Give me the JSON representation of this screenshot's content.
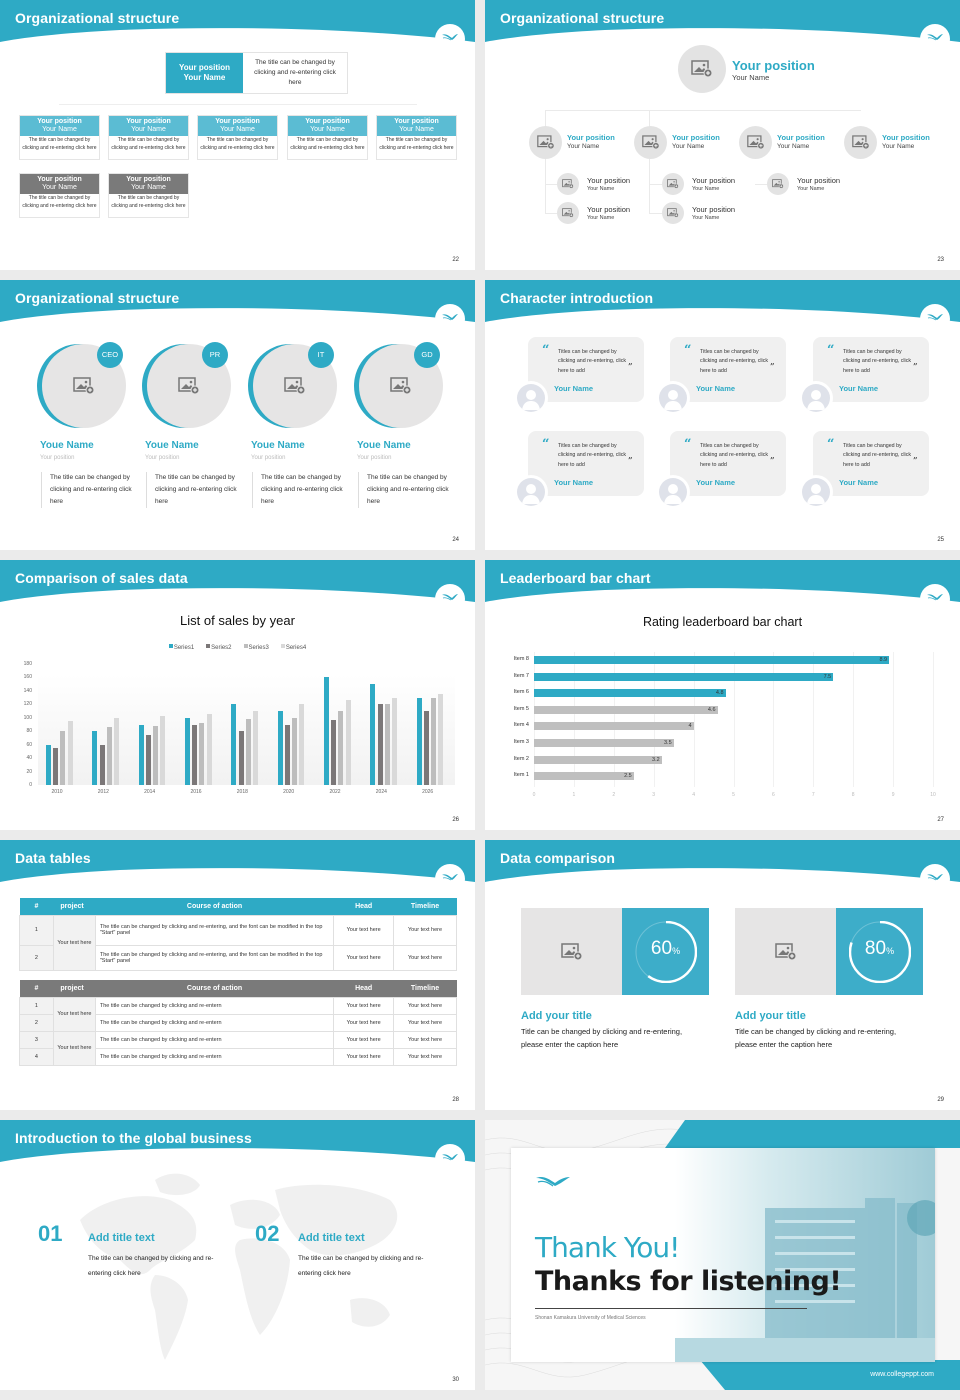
{
  "theme": {
    "accent": "#2eaac5",
    "grey_bar": "#7a7a7a",
    "light_grey": "#e6e5e5"
  },
  "slides": {
    "s22": {
      "title": "Organizational structure",
      "page": "22",
      "top": {
        "position": "Your position",
        "name": "Your Name",
        "desc": "The title can be changed by clicking and re-entering click here"
      },
      "cards": [
        {
          "position": "Your position",
          "name": "Your Name",
          "desc": "The title can be changed by clicking and re-entering click here"
        },
        {
          "position": "Your position",
          "name": "Your Name",
          "desc": "The title can be changed by clicking and re-entering click here"
        },
        {
          "position": "Your position",
          "name": "Your Name",
          "desc": "The title can be changed by clicking and re-entering click here"
        },
        {
          "position": "Your position",
          "name": "Your Name",
          "desc": "The title can be changed by clicking and re-entering click here"
        },
        {
          "position": "Your position",
          "name": "Your Name",
          "desc": "The title can be changed by clicking and re-entering click here"
        },
        {
          "position": "Your position",
          "name": "Your Name",
          "desc": "The title can be changed by clicking and re-entering click here"
        },
        {
          "position": "Your position",
          "name": "Your Name",
          "desc": "The title can be changed by clicking and re-entering click here"
        }
      ]
    },
    "s23": {
      "title": "Organizational structure",
      "page": "23",
      "top": {
        "position": "Your position",
        "name": "Your Name"
      },
      "level2": [
        {
          "position": "Your position",
          "name": "Your Name"
        },
        {
          "position": "Your position",
          "name": "Your Name"
        },
        {
          "position": "Your position",
          "name": "Your Name"
        },
        {
          "position": "Your position",
          "name": "Your Name"
        }
      ],
      "level3": [
        {
          "position": "Your position",
          "name": "Your Name"
        },
        {
          "position": "Your position",
          "name": "Your Name"
        },
        {
          "position": "Your position",
          "name": "Your Name"
        },
        {
          "position": "Your position",
          "name": "Your Name"
        },
        {
          "position": "Your position",
          "name": "Your Name"
        }
      ]
    },
    "s24": {
      "title": "Organizational structure",
      "page": "24",
      "members": [
        {
          "badge": "CEO",
          "name": "Youe Name",
          "position": "Your position",
          "desc": "The title can be changed by clicking and re-entering click here"
        },
        {
          "badge": "PR",
          "name": "Youe Name",
          "position": "Your position",
          "desc": "The title can be changed by clicking and re-entering click here"
        },
        {
          "badge": "IT",
          "name": "Youe Name",
          "position": "Your position",
          "desc": "The title can be changed by clicking and re-entering click here"
        },
        {
          "badge": "GD",
          "name": "Youe Name",
          "position": "Your position",
          "desc": "The title can be changed by clicking and re-entering click here"
        }
      ]
    },
    "s25": {
      "title": "Character introduction",
      "page": "25",
      "quote_open": "“",
      "quote_close": "”",
      "cards": [
        {
          "text": "Titles can be changed by clicking and re-entering, click here to add",
          "name": "Your Name"
        },
        {
          "text": "Titles can be changed by clicking and re-entering, click here to add",
          "name": "Your Name"
        },
        {
          "text": "Titles can be changed by clicking and re-entering, click here to add",
          "name": "Your Name"
        },
        {
          "text": "Titles can be changed by clicking and re-entering, click here to add",
          "name": "Your Name"
        },
        {
          "text": "Titles can be changed by clicking and re-entering, click here to add",
          "name": "Your Name"
        },
        {
          "text": "Titles can be changed by clicking and re-entering, click here to add",
          "name": "Your Name"
        }
      ]
    },
    "s26": {
      "title": "Comparison of sales data",
      "page": "26"
    },
    "s27": {
      "title": "Leaderboard bar chart",
      "page": "27"
    },
    "s28": {
      "title": "Data tables",
      "page": "28",
      "table1": {
        "headers": [
          "#",
          "project",
          "Course of action",
          "Head",
          "Timeline"
        ],
        "project": "Your text here",
        "rows": [
          {
            "num": "1",
            "action": "The title can be changed by clicking and re-entering, and the font can be modified in the top \"Start\" panel",
            "head": "Your text here",
            "timeline": "Your text here"
          },
          {
            "num": "2",
            "action": "The title can be changed by clicking and re-entering, and the font can be modified in the top \"Start\" panel",
            "head": "Your text here",
            "timeline": "Your text here"
          }
        ]
      },
      "table2": {
        "headers": [
          "#",
          "project",
          "Course of action",
          "Head",
          "Timeline"
        ],
        "projects": [
          "Your text here",
          "Your text here"
        ],
        "rows": [
          {
            "num": "1",
            "action": "The title can be changed by clicking and re-entern",
            "head": "Your text here",
            "timeline": "Your text here"
          },
          {
            "num": "2",
            "action": "The title can be changed by clicking and re-entern",
            "head": "Your text here",
            "timeline": "Your text here"
          },
          {
            "num": "3",
            "action": "The title can be changed by clicking and re-entern",
            "head": "Your text here",
            "timeline": "Your text here"
          },
          {
            "num": "4",
            "action": "The title can be changed by clicking and re-entern",
            "head": "Your text here",
            "timeline": "Your text here"
          }
        ]
      }
    },
    "s29": {
      "title": "Data comparison",
      "page": "29",
      "items": [
        {
          "value": "60",
          "unit": "%",
          "percent": 60,
          "title": "Add your title",
          "text": "Title can be changed by clicking and re-entering, please enter the caption here"
        },
        {
          "value": "80",
          "unit": "%",
          "percent": 80,
          "title": "Add your title",
          "text": "Title can be changed by clicking and re-entering, please enter the caption here"
        }
      ]
    },
    "s30": {
      "title": "Introduction to the global business",
      "page": "30",
      "items": [
        {
          "num": "01",
          "title": "Add title text",
          "text": "The title can be changed by clicking and re-entering click here"
        },
        {
          "num": "02",
          "title": "Add title text",
          "text": "The title can be changed by clicking and re-entering click here"
        }
      ]
    },
    "s31": {
      "thank": "Thank You!",
      "listening": "Thanks for listening!",
      "subtitle": "Shonan Kamakura University of Medical Sciences",
      "url": "www.collegeppt.com"
    }
  },
  "chart_data": [
    {
      "type": "bar",
      "title": "List of sales by year",
      "categories": [
        "2010",
        "2012",
        "2014",
        "2016",
        "2018",
        "2020",
        "2022",
        "2024",
        "2026"
      ],
      "series": [
        {
          "name": "Series1",
          "color": "#2eaac5",
          "values": [
            60,
            80,
            90,
            100,
            120,
            110,
            160,
            150,
            130
          ]
        },
        {
          "name": "Series2",
          "color": "#7b7778",
          "values": [
            55,
            60,
            75,
            90,
            80,
            90,
            96,
            120,
            110
          ]
        },
        {
          "name": "Series3",
          "color": "#bdbdbd",
          "values": [
            80,
            86,
            88,
            92,
            98,
            100,
            110,
            120,
            130
          ]
        },
        {
          "name": "Series4",
          "color": "#d9d9d9",
          "values": [
            95,
            99,
            102,
            105,
            110,
            120,
            126,
            130,
            135
          ]
        }
      ],
      "xlabel": "",
      "ylabel": "",
      "ylim": [
        0,
        180
      ],
      "yticks": [
        "0",
        "20",
        "40",
        "60",
        "80",
        "100",
        "120",
        "140",
        "160",
        "180"
      ],
      "legend_position": "top",
      "grid": false
    },
    {
      "type": "bar",
      "orientation": "horizontal",
      "title": "Rating leaderboard bar chart",
      "categories": [
        "Item 8",
        "Item 7",
        "Item 6",
        "Item 5",
        "Item 4",
        "Item 3",
        "Item 2",
        "Item 1"
      ],
      "values": [
        8.9,
        7.5,
        4.8,
        4.6,
        4,
        3.5,
        3.2,
        2.5
      ],
      "labels": [
        "8.9",
        "7.5",
        "4.8",
        "4.6",
        "4",
        "3.5",
        "3.2",
        "2.5"
      ],
      "colors": [
        "#2eaac5",
        "#2eaac5",
        "#2eaac5",
        "#bfbfbf",
        "#bfbfbf",
        "#bfbfbf",
        "#bfbfbf",
        "#bfbfbf"
      ],
      "xlim": [
        0,
        10
      ],
      "xticks": [
        "0",
        "1",
        "2",
        "3",
        "4",
        "5",
        "6",
        "7",
        "8",
        "9",
        "10"
      ],
      "grid": true
    }
  ]
}
